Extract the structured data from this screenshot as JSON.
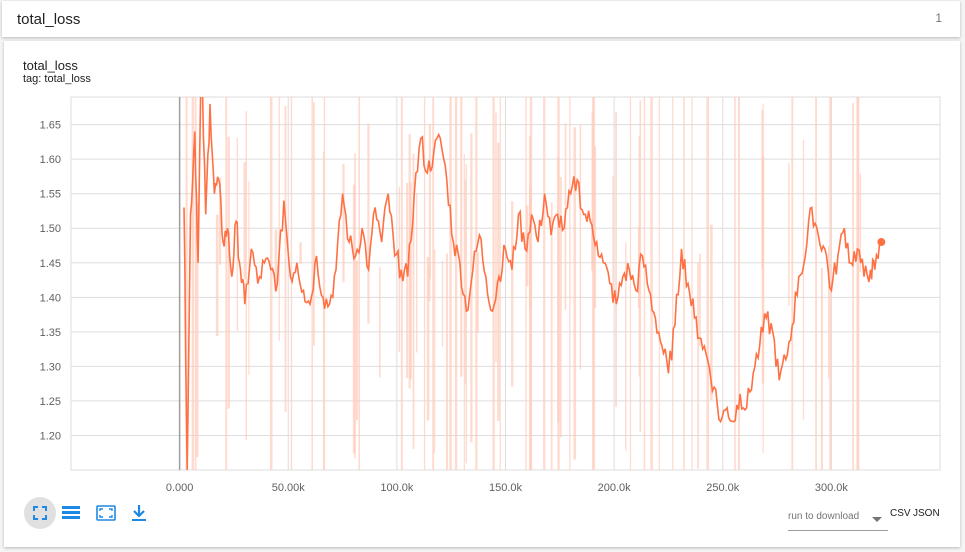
{
  "header": {
    "title": "total_loss",
    "count": "1"
  },
  "card": {
    "title": "total_loss",
    "tag": "tag: total_loss"
  },
  "toolbar": {
    "fit_icon": "fit-domain-icon",
    "log_icon": "log-scale-icon",
    "expand_icon": "expand-icon",
    "download_icon": "download-icon"
  },
  "download": {
    "select_label": "run to download",
    "csv": "CSV",
    "json": "JSON"
  },
  "colors": {
    "series": "#ff7043",
    "raw": "#ffccbc",
    "grid": "#dddddd"
  },
  "chart_data": {
    "type": "line",
    "title": "total_loss",
    "subtitle": "tag: total_loss",
    "xlabel": "",
    "ylabel": "",
    "xlim": [
      -50000,
      350000
    ],
    "ylim": [
      1.15,
      1.69
    ],
    "x_ticks": [
      0,
      50000,
      100000,
      150000,
      200000,
      250000,
      300000
    ],
    "x_tick_labels": [
      "0.000",
      "50.00k",
      "100.0k",
      "150.0k",
      "200.0k",
      "250.0k",
      "300.0k"
    ],
    "y_ticks": [
      1.2,
      1.25,
      1.3,
      1.35,
      1.4,
      1.45,
      1.5,
      1.55,
      1.6,
      1.65
    ],
    "y_tick_labels": [
      "1.20",
      "1.25",
      "1.30",
      "1.35",
      "1.40",
      "1.45",
      "1.50",
      "1.55",
      "1.60",
      "1.65"
    ],
    "grid": true,
    "series": [
      {
        "values": [
          [
            2000,
            1.53
          ],
          [
            3500,
            1.15
          ],
          [
            5000,
            1.52
          ],
          [
            7000,
            1.64
          ],
          [
            8500,
            1.45
          ],
          [
            10000,
            1.75
          ],
          [
            12000,
            1.52
          ],
          [
            14000,
            1.68
          ],
          [
            16000,
            1.55
          ],
          [
            18000,
            1.57
          ],
          [
            20000,
            1.48
          ],
          [
            22000,
            1.5
          ],
          [
            24000,
            1.43
          ],
          [
            26000,
            1.51
          ],
          [
            28000,
            1.44
          ],
          [
            30000,
            1.39
          ],
          [
            33000,
            1.47
          ],
          [
            36000,
            1.42
          ],
          [
            39000,
            1.45
          ],
          [
            42000,
            1.44
          ],
          [
            45000,
            1.42
          ],
          [
            48000,
            1.54
          ],
          [
            51000,
            1.43
          ],
          [
            54000,
            1.45
          ],
          [
            57000,
            1.41
          ],
          [
            60000,
            1.39
          ],
          [
            63000,
            1.46
          ],
          [
            66000,
            1.4
          ],
          [
            69000,
            1.39
          ],
          [
            72000,
            1.44
          ],
          [
            75000,
            1.55
          ],
          [
            78000,
            1.48
          ],
          [
            81000,
            1.46
          ],
          [
            84000,
            1.5
          ],
          [
            87000,
            1.44
          ],
          [
            90000,
            1.53
          ],
          [
            93000,
            1.48
          ],
          [
            96000,
            1.55
          ],
          [
            99000,
            1.46
          ],
          [
            102000,
            1.44
          ],
          [
            105000,
            1.43
          ],
          [
            108000,
            1.55
          ],
          [
            111000,
            1.63
          ],
          [
            114000,
            1.58
          ],
          [
            117000,
            1.61
          ],
          [
            120000,
            1.63
          ],
          [
            123000,
            1.57
          ],
          [
            126000,
            1.48
          ],
          [
            129000,
            1.45
          ],
          [
            132000,
            1.38
          ],
          [
            135000,
            1.44
          ],
          [
            138000,
            1.49
          ],
          [
            141000,
            1.43
          ],
          [
            144000,
            1.38
          ],
          [
            147000,
            1.43
          ],
          [
            150000,
            1.47
          ],
          [
            153000,
            1.44
          ],
          [
            156000,
            1.52
          ],
          [
            159000,
            1.47
          ],
          [
            162000,
            1.52
          ],
          [
            165000,
            1.48
          ],
          [
            168000,
            1.55
          ],
          [
            171000,
            1.49
          ],
          [
            174000,
            1.52
          ],
          [
            177000,
            1.5
          ],
          [
            180000,
            1.55
          ],
          [
            183000,
            1.57
          ],
          [
            186000,
            1.52
          ],
          [
            189000,
            1.51
          ],
          [
            192000,
            1.48
          ],
          [
            195000,
            1.45
          ],
          [
            198000,
            1.42
          ],
          [
            201000,
            1.39
          ],
          [
            204000,
            1.43
          ],
          [
            207000,
            1.44
          ],
          [
            210000,
            1.41
          ],
          [
            213000,
            1.46
          ],
          [
            216000,
            1.41
          ],
          [
            219000,
            1.37
          ],
          [
            222000,
            1.33
          ],
          [
            225000,
            1.29
          ],
          [
            228000,
            1.36
          ],
          [
            231000,
            1.47
          ],
          [
            234000,
            1.42
          ],
          [
            237000,
            1.37
          ],
          [
            240000,
            1.34
          ],
          [
            243000,
            1.31
          ],
          [
            246000,
            1.27
          ],
          [
            249000,
            1.22
          ],
          [
            252000,
            1.24
          ],
          [
            255000,
            1.22
          ],
          [
            258000,
            1.26
          ],
          [
            261000,
            1.24
          ],
          [
            264000,
            1.29
          ],
          [
            267000,
            1.33
          ],
          [
            270000,
            1.37
          ],
          [
            273000,
            1.35
          ],
          [
            276000,
            1.28
          ],
          [
            279000,
            1.31
          ],
          [
            282000,
            1.36
          ],
          [
            285000,
            1.43
          ],
          [
            288000,
            1.46
          ],
          [
            291000,
            1.53
          ],
          [
            294000,
            1.49
          ],
          [
            297000,
            1.47
          ],
          [
            300000,
            1.41
          ],
          [
            303000,
            1.46
          ],
          [
            306000,
            1.5
          ],
          [
            309000,
            1.45
          ],
          [
            312000,
            1.47
          ],
          [
            315000,
            1.43
          ],
          [
            318000,
            1.44
          ],
          [
            320000,
            1.44
          ],
          [
            323000,
            1.48
          ]
        ]
      }
    ]
  }
}
